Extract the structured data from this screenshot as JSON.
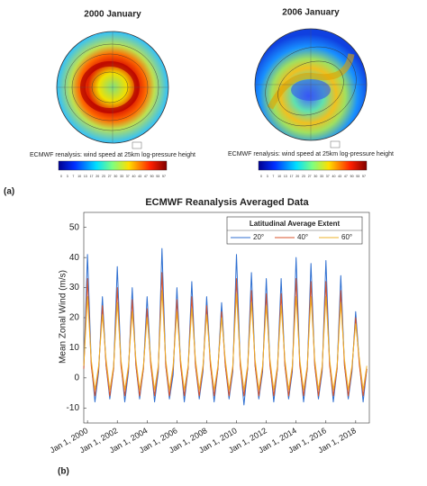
{
  "panels": [
    {
      "title": "2000 January",
      "caption": "ECMWF renalysis: wind speed at 25km log-pressure height",
      "colorbar_ticks": [
        0,
        3,
        7,
        10,
        13,
        17,
        20,
        23,
        27,
        30,
        33,
        37,
        40,
        43,
        47,
        50,
        53,
        57
      ]
    },
    {
      "title": "2006 January",
      "caption": "ECMWF renalysis: wind speed at 25km log-pressure height",
      "colorbar_ticks": [
        0,
        3,
        7,
        10,
        13,
        17,
        20,
        23,
        27,
        30,
        33,
        37,
        40,
        43,
        47,
        50,
        53,
        57
      ]
    }
  ],
  "label_a": "(a)",
  "label_b": "(b)",
  "chart_data": {
    "type": "line",
    "title": "ECMWF Reanalysis Averaged Data",
    "y_label": "Mean Zonal Wind (m/s)",
    "legend_title": "Latitudinal Average Extent",
    "legend_position": "upper-right",
    "xlim": [
      "1999-10-01",
      "2018-12-01"
    ],
    "ylim": [
      -15,
      55
    ],
    "yticks": [
      -10,
      0,
      10,
      20,
      30,
      40,
      50
    ],
    "xticks": [
      {
        "value": "2000-01-01",
        "label": "Jan 1, 2000"
      },
      {
        "value": "2002-01-01",
        "label": "Jan 1, 2002"
      },
      {
        "value": "2004-01-01",
        "label": "Jan 1, 2004"
      },
      {
        "value": "2006-01-01",
        "label": "Jan 1, 2006"
      },
      {
        "value": "2008-01-01",
        "label": "Jan 1, 2008"
      },
      {
        "value": "2010-01-01",
        "label": "Jan 1, 2010"
      },
      {
        "value": "2012-01-01",
        "label": "Jan 1, 2012"
      },
      {
        "value": "2014-01-01",
        "label": "Jan 1, 2014"
      },
      {
        "value": "2016-01-01",
        "label": "Jan 1, 2016"
      },
      {
        "value": "2018-01-01",
        "label": "Jan 1, 2018"
      }
    ],
    "x": [
      "1999-10-01",
      "2000-01-01",
      "2000-04-01",
      "2000-07-01",
      "2000-10-01",
      "2001-01-01",
      "2001-04-01",
      "2001-07-01",
      "2001-10-01",
      "2002-01-01",
      "2002-04-01",
      "2002-07-01",
      "2002-10-01",
      "2003-01-01",
      "2003-04-01",
      "2003-07-01",
      "2003-10-01",
      "2004-01-01",
      "2004-04-01",
      "2004-07-01",
      "2004-10-01",
      "2005-01-01",
      "2005-04-01",
      "2005-07-01",
      "2005-10-01",
      "2006-01-01",
      "2006-04-01",
      "2006-07-01",
      "2006-10-01",
      "2007-01-01",
      "2007-04-01",
      "2007-07-01",
      "2007-10-01",
      "2008-01-01",
      "2008-04-01",
      "2008-07-01",
      "2008-10-01",
      "2009-01-01",
      "2009-04-01",
      "2009-07-01",
      "2009-10-01",
      "2010-01-01",
      "2010-04-01",
      "2010-07-01",
      "2010-10-01",
      "2011-01-01",
      "2011-04-01",
      "2011-07-01",
      "2011-10-01",
      "2012-01-01",
      "2012-04-01",
      "2012-07-01",
      "2012-10-01",
      "2013-01-01",
      "2013-04-01",
      "2013-07-01",
      "2013-10-01",
      "2014-01-01",
      "2014-04-01",
      "2014-07-01",
      "2014-10-01",
      "2015-01-01",
      "2015-04-01",
      "2015-07-01",
      "2015-10-01",
      "2016-01-01",
      "2016-04-01",
      "2016-07-01",
      "2016-10-01",
      "2017-01-01",
      "2017-04-01",
      "2017-07-01",
      "2017-10-01",
      "2018-01-01",
      "2018-04-01",
      "2018-07-01",
      "2018-10-01"
    ],
    "series": [
      {
        "name": "20°",
        "color": "#2f6fd0",
        "values": [
          3,
          41,
          5,
          -8,
          2,
          27,
          4,
          -7,
          3,
          37,
          5,
          -8,
          2,
          30,
          4,
          -7,
          3,
          27,
          5,
          -8,
          2,
          43,
          4,
          -7,
          1,
          30,
          5,
          -8,
          3,
          32,
          4,
          -7,
          2,
          27,
          5,
          -8,
          3,
          25,
          4,
          -7,
          2,
          41,
          5,
          -9,
          3,
          35,
          4,
          -7,
          2,
          33,
          5,
          -8,
          3,
          33,
          4,
          -7,
          2,
          40,
          5,
          -8,
          3,
          38,
          4,
          -7,
          2,
          39,
          5,
          -8,
          3,
          34,
          4,
          -7,
          2,
          22,
          5,
          -8,
          3
        ]
      },
      {
        "name": "40°",
        "color": "#d9532b",
        "values": [
          3,
          33,
          4,
          -6,
          3,
          24,
          4,
          -6,
          3,
          30,
          4,
          -6,
          3,
          26,
          4,
          -6,
          3,
          23,
          4,
          -6,
          3,
          35,
          4,
          -6,
          3,
          26,
          4,
          -6,
          3,
          27,
          4,
          -6,
          3,
          24,
          4,
          -6,
          3,
          22,
          4,
          -6,
          3,
          33,
          4,
          -6,
          3,
          29,
          4,
          -6,
          3,
          28,
          4,
          -6,
          3,
          28,
          4,
          -6,
          3,
          33,
          4,
          -6,
          3,
          32,
          4,
          -6,
          3,
          32,
          4,
          -6,
          3,
          29,
          4,
          -6,
          3,
          20,
          4,
          -6,
          3
        ]
      },
      {
        "name": "60°",
        "color": "#eeb12a",
        "values": [
          4,
          27,
          6,
          -4,
          4,
          21,
          6,
          -4,
          4,
          25,
          6,
          -4,
          4,
          22,
          6,
          -4,
          4,
          20,
          6,
          -4,
          4,
          29,
          6,
          -4,
          4,
          22,
          6,
          -4,
          4,
          23,
          6,
          -4,
          4,
          21,
          6,
          -4,
          4,
          20,
          6,
          -4,
          4,
          28,
          6,
          -4,
          4,
          25,
          6,
          -4,
          4,
          24,
          6,
          -4,
          4,
          24,
          6,
          -4,
          4,
          27,
          6,
          -4,
          4,
          27,
          6,
          -4,
          4,
          27,
          6,
          -4,
          4,
          25,
          6,
          -4,
          4,
          18,
          6,
          -4,
          4
        ]
      }
    ]
  }
}
